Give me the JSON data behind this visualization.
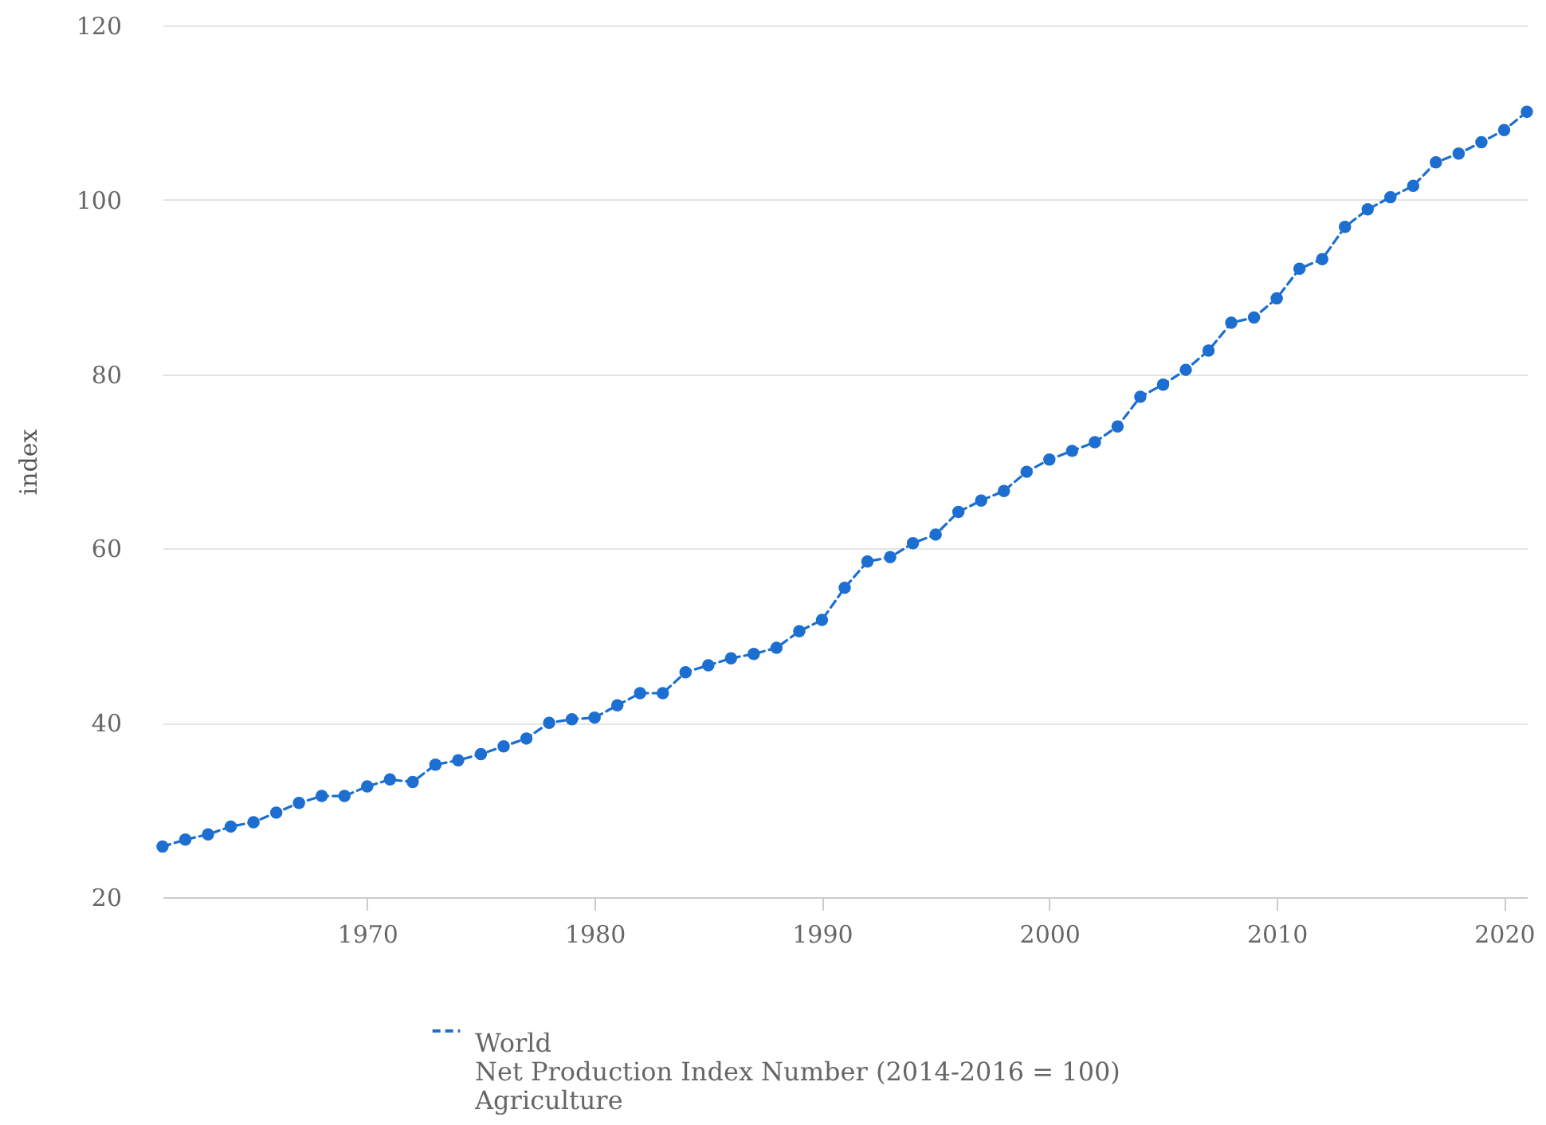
{
  "chart_data": {
    "type": "line",
    "ylabel": "index",
    "x": [
      1961,
      1962,
      1963,
      1964,
      1965,
      1966,
      1967,
      1968,
      1969,
      1970,
      1971,
      1972,
      1973,
      1974,
      1975,
      1976,
      1977,
      1978,
      1979,
      1980,
      1981,
      1982,
      1983,
      1984,
      1985,
      1986,
      1987,
      1988,
      1989,
      1990,
      1991,
      1992,
      1993,
      1994,
      1995,
      1996,
      1997,
      1998,
      1999,
      2000,
      2001,
      2002,
      2003,
      2004,
      2005,
      2006,
      2007,
      2008,
      2009,
      2010,
      2011,
      2012,
      2013,
      2014,
      2015,
      2016,
      2017,
      2018,
      2019,
      2020,
      2021
    ],
    "series": [
      {
        "name": "World",
        "color": "#1c6fd0",
        "values": [
          25.8,
          26.6,
          27.2,
          28.1,
          28.6,
          29.7,
          30.8,
          31.6,
          31.6,
          32.7,
          33.5,
          33.2,
          35.2,
          35.7,
          36.4,
          37.3,
          38.2,
          40.0,
          40.4,
          40.6,
          42.0,
          43.4,
          43.4,
          45.8,
          46.6,
          47.4,
          47.9,
          48.6,
          50.5,
          51.8,
          55.5,
          58.5,
          59.0,
          60.6,
          61.6,
          64.2,
          65.5,
          66.6,
          68.8,
          70.2,
          71.2,
          72.2,
          74.0,
          77.4,
          78.8,
          80.5,
          82.7,
          85.9,
          86.5,
          88.7,
          92.1,
          93.2,
          96.9,
          98.9,
          100.3,
          101.6,
          104.3,
          105.3,
          106.6,
          108.0,
          110.1
        ]
      }
    ],
    "annotations": [
      "Net Production Index Number (2014-2016 = 100)",
      "Agriculture"
    ],
    "xlim": [
      1961,
      2021
    ],
    "xticks": [
      1970,
      1980,
      1990,
      2000,
      2010,
      2020
    ],
    "ylim": [
      20,
      120
    ],
    "yticks": [
      20,
      40,
      60,
      80,
      100,
      120
    ],
    "grid": "y",
    "legend": "bottom",
    "marker": "circle",
    "line_style": "dashed"
  }
}
